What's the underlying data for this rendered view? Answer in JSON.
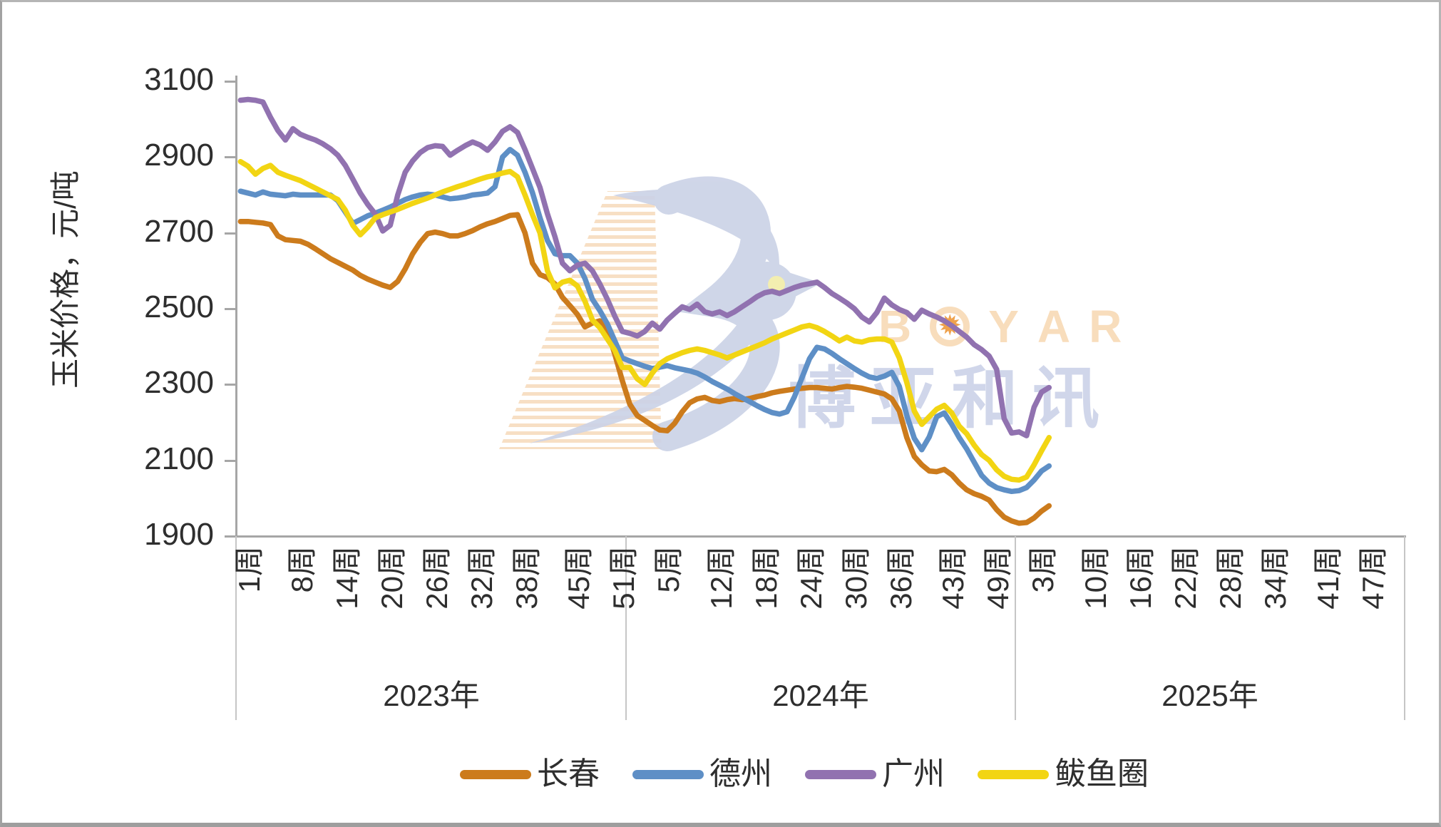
{
  "y_axis": {
    "title": "玉米价格，元/吨",
    "tick_labels": [
      "3100",
      "2900",
      "2700",
      "2500",
      "2300",
      "2100",
      "1900"
    ],
    "min": 1900,
    "max": 3100
  },
  "x_axis": {
    "groups": [
      {
        "year": "2023年",
        "labels": [
          "1周",
          "8周",
          "14周",
          "20周",
          "26周",
          "32周",
          "38周",
          "45周",
          "51周"
        ]
      },
      {
        "year": "2024年",
        "labels": [
          "5周",
          "12周",
          "18周",
          "24周",
          "30周",
          "36周",
          "43周",
          "49周"
        ]
      },
      {
        "year": "2025年",
        "labels": [
          "3周",
          "10周",
          "16周",
          "22周",
          "28周",
          "34周",
          "41周",
          "47周"
        ]
      }
    ]
  },
  "watermark": {
    "brand_left": "B",
    "brand_right": [
      "Y",
      "A",
      "R"
    ],
    "sun_icon": "✹",
    "cn_text": "博亚和讯",
    "bird_color": "#ccd3e7",
    "stripe_color": "#f6d9ba",
    "brand_color": "#f8ddbc"
  },
  "chart_data": {
    "type": "line",
    "title": "",
    "xlabel": "",
    "ylabel": "玉米价格，元/吨",
    "ylim": [
      1900,
      3100
    ],
    "yticks": [
      3100,
      2900,
      2700,
      2500,
      2300,
      2100,
      1900
    ],
    "grid": false,
    "legend_position": "bottom",
    "x_structure": {
      "years": [
        "2023",
        "2024",
        "2025"
      ],
      "weeks_per_year": {
        "2023": 52,
        "2024": 52,
        "2025": 5
      },
      "axis_slots_per_year": 52
    },
    "series": [
      {
        "name": "长春",
        "color": "#cc7b1c",
        "values": {
          "2023": [
            2730,
            2730,
            2728,
            2726,
            2722,
            2692,
            2682,
            2680,
            2678,
            2670,
            2658,
            2645,
            2632,
            2622,
            2612,
            2602,
            2588,
            2578,
            2570,
            2562,
            2556,
            2572,
            2605,
            2645,
            2675,
            2698,
            2702,
            2698,
            2692,
            2692,
            2698,
            2706,
            2716,
            2724,
            2730,
            2738,
            2746,
            2748,
            2700,
            2620,
            2590,
            2582,
            2565,
            2530,
            2508,
            2485,
            2452,
            2462,
            2468,
            2442,
            2380,
            2310
          ],
          "2024": [
            2248,
            2218,
            2205,
            2192,
            2180,
            2178,
            2198,
            2228,
            2252,
            2262,
            2266,
            2258,
            2255,
            2260,
            2263,
            2260,
            2263,
            2268,
            2272,
            2278,
            2282,
            2285,
            2288,
            2290,
            2292,
            2292,
            2290,
            2288,
            2292,
            2295,
            2293,
            2290,
            2285,
            2280,
            2275,
            2262,
            2230,
            2160,
            2110,
            2088,
            2072,
            2070,
            2076,
            2062,
            2040,
            2022,
            2012,
            2005,
            1995,
            1970,
            1950,
            1940
          ],
          "2025": [
            1934,
            1936,
            1948,
            1966,
            1980
          ]
        }
      },
      {
        "name": "德州",
        "color": "#5e8fc6",
        "values": {
          "2023": [
            2810,
            2805,
            2800,
            2808,
            2802,
            2800,
            2798,
            2802,
            2800,
            2800,
            2800,
            2800,
            2800,
            2785,
            2755,
            2725,
            2735,
            2745,
            2752,
            2760,
            2768,
            2778,
            2788,
            2795,
            2800,
            2802,
            2800,
            2795,
            2790,
            2792,
            2795,
            2800,
            2802,
            2805,
            2822,
            2900,
            2920,
            2905,
            2860,
            2806,
            2740,
            2680,
            2645,
            2640,
            2640,
            2620,
            2580,
            2525,
            2495,
            2460,
            2415,
            2370
          ],
          "2024": [
            2362,
            2355,
            2348,
            2342,
            2346,
            2350,
            2344,
            2340,
            2336,
            2330,
            2320,
            2308,
            2298,
            2288,
            2276,
            2265,
            2255,
            2244,
            2234,
            2226,
            2222,
            2228,
            2268,
            2318,
            2368,
            2398,
            2394,
            2382,
            2368,
            2355,
            2342,
            2330,
            2320,
            2316,
            2322,
            2332,
            2295,
            2218,
            2158,
            2128,
            2162,
            2215,
            2225,
            2195,
            2160,
            2130,
            2095,
            2060,
            2040,
            2028,
            2022,
            2018
          ],
          "2025": [
            2020,
            2028,
            2048,
            2072,
            2085
          ]
        }
      },
      {
        "name": "广州",
        "color": "#9172b0",
        "values": {
          "2023": [
            3050,
            3052,
            3050,
            3045,
            3005,
            2970,
            2945,
            2975,
            2960,
            2952,
            2945,
            2935,
            2922,
            2905,
            2878,
            2842,
            2805,
            2775,
            2750,
            2705,
            2720,
            2800,
            2860,
            2890,
            2912,
            2925,
            2930,
            2928,
            2905,
            2918,
            2930,
            2940,
            2932,
            2918,
            2940,
            2968,
            2980,
            2965,
            2920,
            2870,
            2820,
            2750,
            2690,
            2620,
            2600,
            2615,
            2620,
            2600,
            2565,
            2525,
            2480,
            2440
          ],
          "2024": [
            2435,
            2428,
            2440,
            2462,
            2446,
            2470,
            2488,
            2505,
            2498,
            2512,
            2492,
            2486,
            2492,
            2482,
            2492,
            2505,
            2518,
            2532,
            2542,
            2546,
            2540,
            2548,
            2556,
            2562,
            2566,
            2570,
            2556,
            2540,
            2528,
            2515,
            2500,
            2478,
            2465,
            2490,
            2528,
            2510,
            2498,
            2490,
            2472,
            2496,
            2486,
            2478,
            2468,
            2455,
            2440,
            2425,
            2405,
            2392,
            2375,
            2340,
            2210,
            2172
          ],
          "2025": [
            2175,
            2165,
            2240,
            2280,
            2292
          ]
        }
      },
      {
        "name": "鲅鱼圈",
        "color": "#f2d513",
        "values": {
          "2023": [
            2888,
            2876,
            2855,
            2870,
            2878,
            2860,
            2852,
            2845,
            2838,
            2828,
            2818,
            2808,
            2798,
            2788,
            2760,
            2720,
            2695,
            2715,
            2740,
            2748,
            2755,
            2762,
            2770,
            2778,
            2785,
            2792,
            2800,
            2808,
            2815,
            2822,
            2828,
            2835,
            2842,
            2848,
            2852,
            2858,
            2862,
            2848,
            2800,
            2748,
            2700,
            2600,
            2555,
            2570,
            2575,
            2560,
            2520,
            2470,
            2450,
            2420,
            2390,
            2345
          ],
          "2024": [
            2345,
            2315,
            2300,
            2330,
            2355,
            2368,
            2376,
            2384,
            2390,
            2394,
            2390,
            2384,
            2378,
            2370,
            2378,
            2386,
            2394,
            2402,
            2410,
            2420,
            2428,
            2436,
            2444,
            2452,
            2456,
            2450,
            2440,
            2428,
            2415,
            2425,
            2415,
            2412,
            2418,
            2420,
            2420,
            2412,
            2370,
            2305,
            2230,
            2195,
            2215,
            2235,
            2245,
            2225,
            2190,
            2170,
            2140,
            2115,
            2100,
            2075,
            2058,
            2050
          ],
          "2025": [
            2048,
            2056,
            2088,
            2125,
            2160
          ]
        }
      }
    ]
  }
}
